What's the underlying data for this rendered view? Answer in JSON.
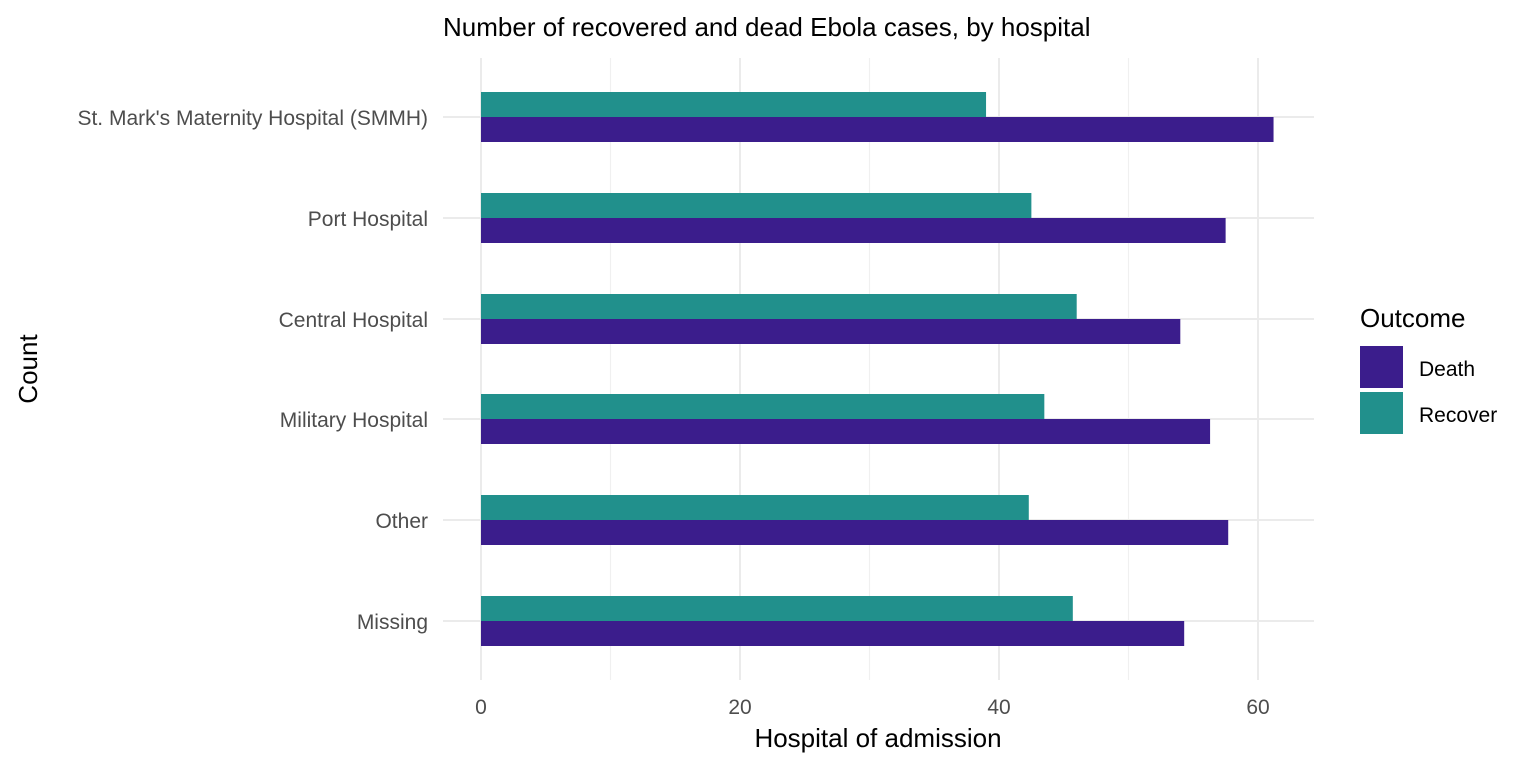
{
  "chart_data": {
    "type": "bar",
    "orientation": "horizontal",
    "title": "Number of recovered and dead Ebola cases, by hospital",
    "xlabel": "Hospital of admission",
    "ylabel": "Count",
    "categories": [
      "St. Mark's Maternity Hospital (SMMH)",
      "Port Hospital",
      "Central Hospital",
      "Military Hospital",
      "Other",
      "Missing"
    ],
    "series": [
      {
        "name": "Recover",
        "color": "#21908C",
        "values": [
          39,
          42.5,
          46,
          43.5,
          42.3,
          45.7
        ]
      },
      {
        "name": "Death",
        "color": "#3B1D8C",
        "values": [
          61.2,
          57.5,
          54,
          56.3,
          57.7,
          54.3
        ]
      }
    ],
    "xlim": [
      0,
      64
    ],
    "xticks": [
      0,
      20,
      40,
      60
    ],
    "grid": true,
    "legend": {
      "title": "Outcome",
      "placement": "right",
      "entries": [
        "Death",
        "Recover"
      ]
    }
  }
}
